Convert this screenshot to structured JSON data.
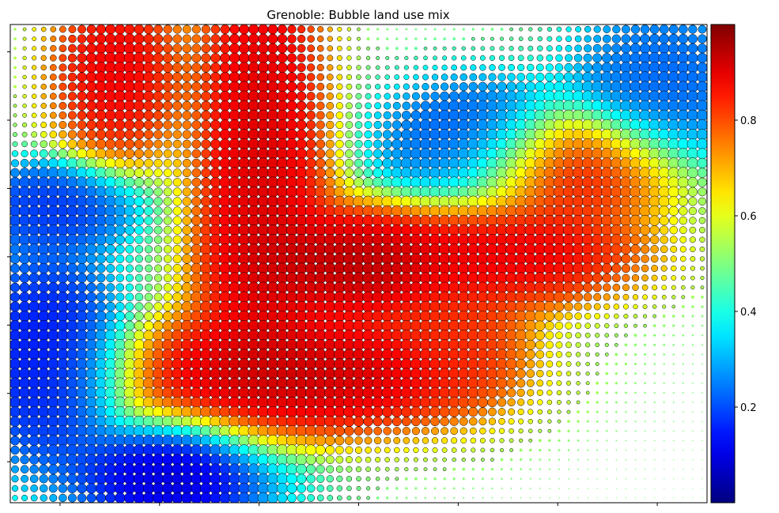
{
  "chart_data": {
    "type": "scatter",
    "title": "Grenoble: Bubble land use mix",
    "xlabel": "",
    "ylabel": "",
    "grid": false,
    "x_tick_labels_shown": false,
    "y_tick_labels_shown": false,
    "x_tick_count": 7,
    "y_tick_count": 7,
    "marker_edge_color": "#000000",
    "grid_size": {
      "cols": 73,
      "rows": 50
    },
    "colormap": "jet",
    "colorbar": {
      "range": [
        0.0,
        1.0
      ],
      "ticks": [
        {
          "value": 0.2,
          "label": "0.2"
        },
        {
          "value": 0.4,
          "label": "0.4"
        },
        {
          "value": 0.6,
          "label": "0.6"
        },
        {
          "value": 0.8,
          "label": "0.8"
        }
      ]
    },
    "field_hotspots": [
      {
        "x": 0.5,
        "y": 0.5,
        "value": 0.98,
        "sx": 0.09,
        "sy": 0.06
      },
      {
        "x": 0.36,
        "y": 0.28,
        "value": 0.95,
        "sx": 0.05,
        "sy": 0.3
      },
      {
        "x": 0.42,
        "y": 0.73,
        "value": 0.96,
        "sx": 0.14,
        "sy": 0.07
      },
      {
        "x": 0.72,
        "y": 0.48,
        "value": 0.92,
        "sx": 0.1,
        "sy": 0.06
      },
      {
        "x": 0.81,
        "y": 0.3,
        "value": 0.9,
        "sx": 0.08,
        "sy": 0.06
      },
      {
        "x": 0.64,
        "y": 0.64,
        "value": 0.85,
        "sx": 0.05,
        "sy": 0.08
      },
      {
        "x": 0.15,
        "y": 0.1,
        "value": 0.92,
        "sx": 0.05,
        "sy": 0.1
      },
      {
        "x": 0.06,
        "y": 0.38,
        "value": 0.15,
        "sx": 0.06,
        "sy": 0.05
      },
      {
        "x": 0.66,
        "y": 0.24,
        "value": 0.18,
        "sx": 0.07,
        "sy": 0.07
      },
      {
        "x": 0.94,
        "y": 0.12,
        "value": 0.2,
        "sx": 0.07,
        "sy": 0.1
      },
      {
        "x": 0.25,
        "y": 0.95,
        "value": 0.05,
        "sx": 0.08,
        "sy": 0.06
      },
      {
        "x": 0.05,
        "y": 0.7,
        "value": 0.1,
        "sx": 0.06,
        "sy": 0.12
      }
    ]
  }
}
